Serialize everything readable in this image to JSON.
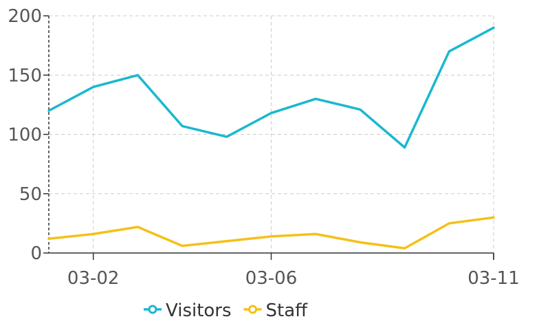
{
  "chart_data": {
    "type": "line",
    "title": "",
    "xlabel": "",
    "ylabel": "",
    "x": [
      "03-01",
      "03-02",
      "03-03",
      "03-04",
      "03-05",
      "03-06",
      "03-07",
      "03-08",
      "03-09",
      "03-10",
      "03-11"
    ],
    "x_tick_labels": [
      "03-02",
      "03-06",
      "03-11"
    ],
    "y_tick_labels": [
      "0",
      "50",
      "100",
      "150",
      "200"
    ],
    "ylim": [
      0,
      200
    ],
    "grid": true,
    "legend_position": "bottom-center",
    "series": [
      {
        "name": "Visitors",
        "color": "#1ab8cf",
        "values": [
          120,
          140,
          150,
          107,
          98,
          118,
          130,
          121,
          89,
          170,
          190
        ]
      },
      {
        "name": "Staff",
        "color": "#f5c018",
        "values": [
          12,
          16,
          22,
          6,
          10,
          14,
          16,
          9,
          4,
          25,
          30
        ]
      }
    ]
  }
}
